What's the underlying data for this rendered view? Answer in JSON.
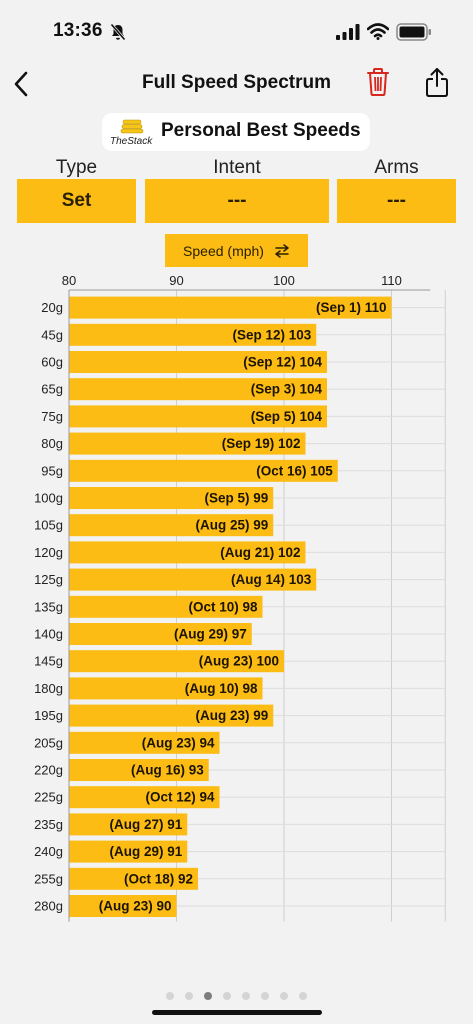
{
  "status_bar": {
    "time": "13:36"
  },
  "nav": {
    "title": "Full Speed Spectrum"
  },
  "header": {
    "logo_text": "TheStack",
    "title": "Personal Best Speeds"
  },
  "filters": [
    {
      "label": "Type",
      "value": "Set"
    },
    {
      "label": "Intent",
      "value": "---"
    },
    {
      "label": "Arms",
      "value": "---"
    }
  ],
  "speed_toggle": {
    "label": "Speed (mph)"
  },
  "colors": {
    "accent": "#fcbc14",
    "trash": "#d6281e"
  },
  "pager": {
    "count": 8,
    "active": 2
  },
  "chart_data": {
    "type": "bar",
    "orientation": "horizontal",
    "xlim": [
      80,
      115
    ],
    "xticks": [
      80,
      90,
      100,
      110
    ],
    "grid": true,
    "categories": [
      "20g",
      "45g",
      "60g",
      "65g",
      "75g",
      "80g",
      "95g",
      "100g",
      "105g",
      "120g",
      "125g",
      "135g",
      "140g",
      "145g",
      "180g",
      "195g",
      "205g",
      "220g",
      "225g",
      "235g",
      "240g",
      "255g",
      "280g"
    ],
    "values": [
      110,
      103,
      104,
      104,
      104,
      102,
      105,
      99,
      99,
      102,
      103,
      98,
      97,
      100,
      98,
      99,
      94,
      93,
      94,
      91,
      91,
      92,
      90
    ],
    "data_labels": [
      "(Sep 1) 110",
      "(Sep 12) 103",
      "(Sep 12) 104",
      "(Sep 3) 104",
      "(Sep 5) 104",
      "(Sep 19) 102",
      "(Oct 16) 105",
      "(Sep 5) 99",
      "(Aug 25) 99",
      "(Aug 21) 102",
      "(Aug 14) 103",
      "(Oct 10) 98",
      "(Aug 29) 97",
      "(Aug 23) 100",
      "(Aug 10) 98",
      "(Aug 23) 99",
      "(Aug 23) 94",
      "(Aug 16) 93",
      "(Oct 12) 94",
      "(Aug 27) 91",
      "(Aug 29) 91",
      "(Oct 18) 92",
      "(Aug 23) 90"
    ]
  }
}
